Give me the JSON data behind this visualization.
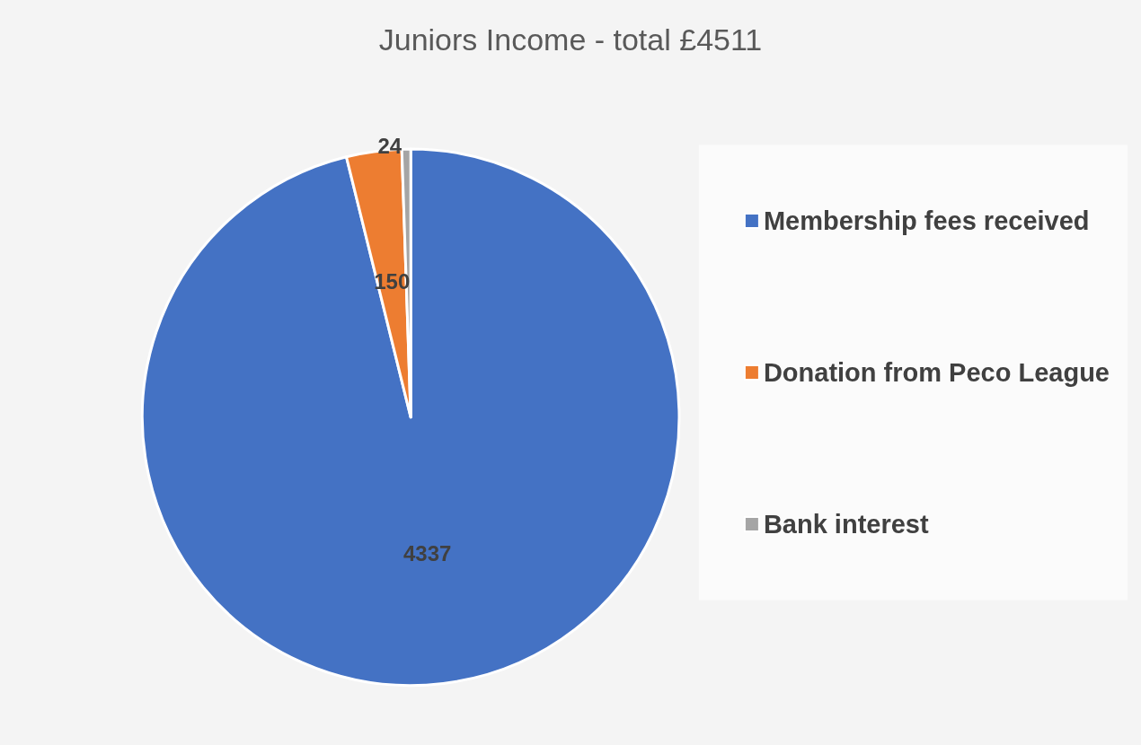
{
  "chart_data": {
    "type": "pie",
    "title": "Juniors Income - total £4511",
    "categories": [
      "Membership fees received",
      "Donation from Peco League",
      "Bank interest"
    ],
    "values": [
      4337,
      150,
      24
    ],
    "colors": [
      "#4472c4",
      "#ed7d31",
      "#a5a5a5"
    ],
    "data_labels": true,
    "legend": "right"
  }
}
